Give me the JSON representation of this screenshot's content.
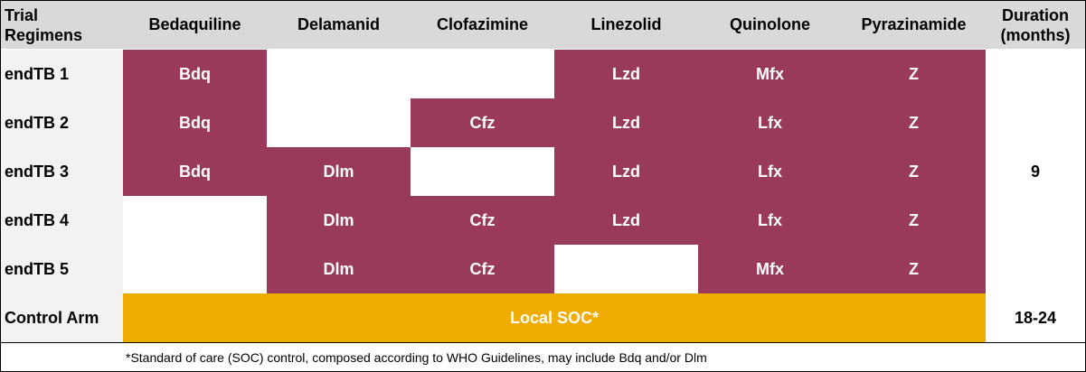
{
  "header": {
    "trial_regimens": [
      "Trial",
      "Regimens"
    ],
    "columns": [
      "Bedaquiline",
      "Delamanid",
      "Clofazimine",
      "Linezolid",
      "Quinolone",
      "Pyrazinamide"
    ],
    "duration": [
      "Duration",
      "(months)"
    ]
  },
  "rows": [
    {
      "label": "endTB 1",
      "cells": [
        "Bdq",
        "",
        "",
        "Lzd",
        "Mfx",
        "Z"
      ]
    },
    {
      "label": "endTB 2",
      "cells": [
        "Bdq",
        "",
        "Cfz",
        "Lzd",
        "Lfx",
        "Z"
      ]
    },
    {
      "label": "endTB 3",
      "cells": [
        "Bdq",
        "Dlm",
        "",
        "Lzd",
        "Lfx",
        "Z"
      ]
    },
    {
      "label": "endTB 4",
      "cells": [
        "",
        "Dlm",
        "Cfz",
        "Lzd",
        "Lfx",
        "Z"
      ]
    },
    {
      "label": "endTB 5",
      "cells": [
        "",
        "Dlm",
        "Cfz",
        "",
        "Mfx",
        "Z"
      ]
    }
  ],
  "trial_duration": "9",
  "control": {
    "label": "Control Arm",
    "text": "Local SOC*",
    "duration": "18-24"
  },
  "footnote": "*Standard of care (SOC) control, composed according to WHO Guidelines, may include Bdq and/or Dlm",
  "colors": {
    "drug": "#993a5b",
    "soc": "#f0ac00",
    "header": "#d9d9d9",
    "label": "#f2f2f2"
  }
}
